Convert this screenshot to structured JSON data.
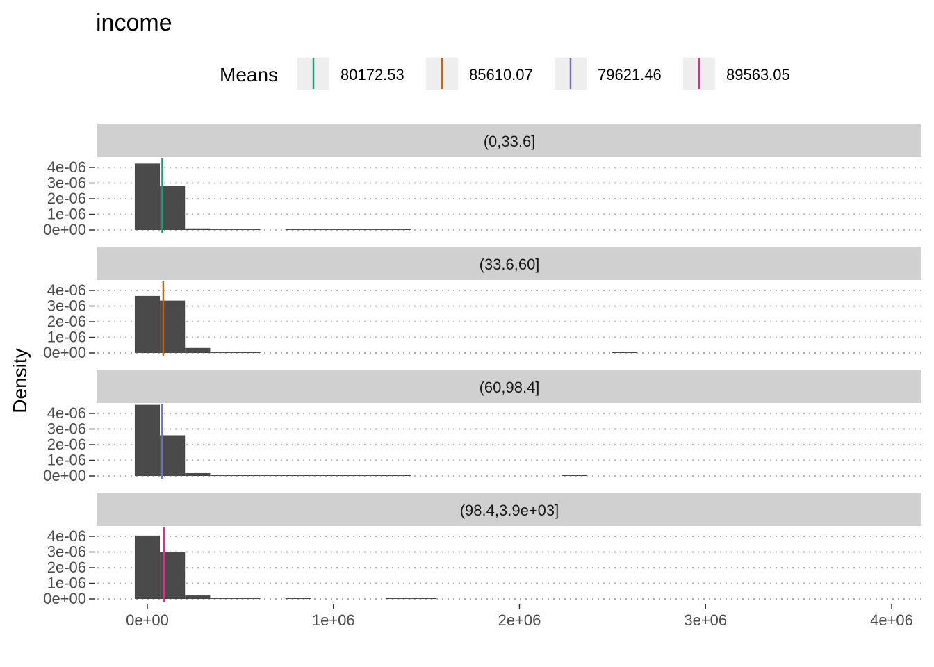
{
  "chart_data": {
    "type": "histogram",
    "title": "income",
    "xlabel": "",
    "ylabel": "Density",
    "legend": {
      "title": "Means",
      "placement": "top",
      "entries": [
        {
          "label": "80172.53",
          "color": "#1B9E77"
        },
        {
          "label": "85610.07",
          "color": "#D95F02"
        },
        {
          "label": "79621.46",
          "color": "#7570B3"
        },
        {
          "label": "89563.05",
          "color": "#E7298A"
        }
      ]
    },
    "xlim": [
      -250000,
      4150000
    ],
    "x_ticks": [
      0,
      1000000,
      2000000,
      3000000,
      4000000
    ],
    "x_tick_labels": [
      "0e+00",
      "1e+06",
      "2e+06",
      "3e+06",
      "4e+06"
    ],
    "ylim": [
      0,
      4.6e-06
    ],
    "y_ticks": [
      0,
      1e-06,
      2e-06,
      3e-06,
      4e-06
    ],
    "y_tick_labels": [
      "0e+00",
      "1e-06",
      "2e-06",
      "3e-06",
      "4e-06"
    ],
    "grid": true,
    "bin_width": 135000,
    "bin_start": -67500,
    "facets": [
      {
        "label": "(0,33.6]",
        "mean": 80172.53,
        "color": "#1B9E77",
        "densities": [
          4.25e-06,
          2.82e-06,
          1e-07,
          2e-08,
          2e-08,
          0.0,
          1e-08,
          1e-08,
          1e-08,
          1e-08,
          1e-08
        ]
      },
      {
        "label": "(33.6,60]",
        "mean": 85610.07,
        "color": "#D95F02",
        "densities": [
          3.65e-06,
          3.35e-06,
          3.2e-07,
          2e-08,
          1e-08,
          0.0,
          0.0,
          0.0,
          0.0,
          0.0,
          0.0,
          0.0,
          0.0,
          0.0,
          0.0,
          0.0,
          0.0,
          0.0,
          0.0,
          1e-08
        ]
      },
      {
        "label": "(60,98.4]",
        "mean": 79621.46,
        "color": "#7570B3",
        "densities": [
          4.55e-06,
          2.6e-06,
          1.8e-07,
          2e-08,
          2e-08,
          1e-08,
          1e-08,
          1e-08,
          1e-08,
          1e-08,
          1e-08,
          0.0,
          0.0,
          0.0,
          0.0,
          0.0,
          0.0,
          1e-08,
          0.0,
          0.0,
          0.0,
          0.0,
          0.0,
          0.0,
          0.0,
          0.0,
          0.0,
          0.0,
          0.0,
          0.0,
          0.0,
          0.0,
          0.0,
          0.0,
          0.0,
          0.0,
          0.0,
          0.0,
          1e-08
        ]
      },
      {
        "label": "(98.4,3.9e+03]",
        "mean": 89563.05,
        "color": "#E7298A",
        "densities": [
          4.05e-06,
          3e-06,
          2.2e-07,
          2e-08,
          1e-08,
          0.0,
          1e-08,
          0.0,
          0.0,
          0.0,
          1e-08,
          1e-08
        ]
      }
    ]
  }
}
